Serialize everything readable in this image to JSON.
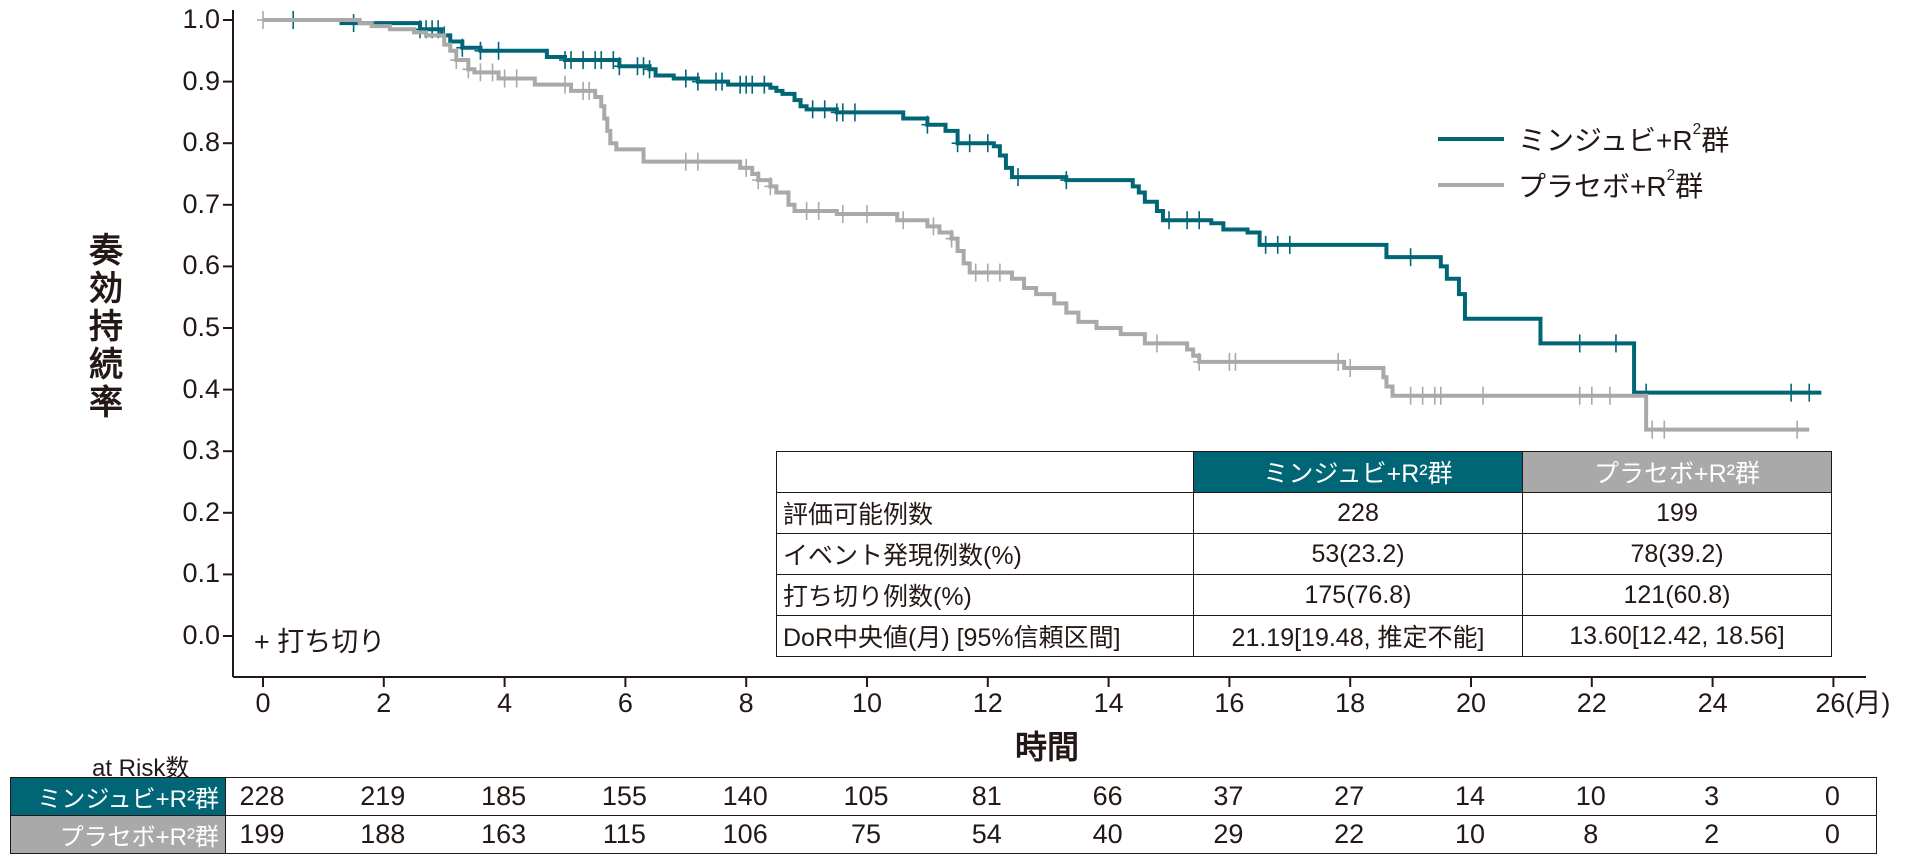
{
  "colors": {
    "minjuvi": "#006676",
    "placebo": "#a9a9a9",
    "text": "#231815"
  },
  "legend": {
    "minjuvi": {
      "prefix": "ミンジュビ+R",
      "sup": "2",
      "suffix": "群"
    },
    "placebo": {
      "prefix": "プラセボ+R",
      "sup": "2",
      "suffix": "群"
    }
  },
  "censor_note": "+ 打ち切り",
  "summary_table": {
    "headers": [
      "",
      "ミンジュビ+R²群",
      "プラセボ+R²群"
    ],
    "rows": [
      {
        "label": "評価可能例数",
        "minjuvi": "228",
        "placebo": "199"
      },
      {
        "label": "イベント発現例数(%)",
        "minjuvi": "53(23.2)",
        "placebo": "78(39.2)"
      },
      {
        "label": "打ち切り例数(%)",
        "minjuvi": "175(76.8)",
        "placebo": "121(60.8)"
      },
      {
        "label": "DoR中央値(月) [95%信頼区間]",
        "minjuvi": "21.19[19.48, 推定不能]",
        "placebo": "13.60[12.42, 18.56]"
      }
    ]
  },
  "at_risk": {
    "title": "at Risk数",
    "times": [
      0,
      2,
      4,
      6,
      8,
      10,
      12,
      14,
      16,
      18,
      20,
      22,
      24,
      26
    ],
    "minjuvi": {
      "label": "ミンジュビ+R²群",
      "values": [
        "228",
        "219",
        "185",
        "155",
        "140",
        "105",
        "81",
        "66",
        "37",
        "27",
        "14",
        "10",
        "3",
        "0"
      ]
    },
    "placebo": {
      "label": "プラセボ+R²群",
      "values": [
        "199",
        "188",
        "163",
        "115",
        "106",
        "75",
        "54",
        "40",
        "29",
        "22",
        "10",
        "8",
        "2",
        "0"
      ]
    }
  },
  "chart_data": {
    "type": "line",
    "subtype": "kaplan-meier step",
    "title": "",
    "xlabel": "時間",
    "x_unit": "(月)",
    "ylabel": "奏効持続率",
    "xlim": [
      0,
      26
    ],
    "ylim": [
      0.0,
      1.0
    ],
    "x_ticks": [
      "0",
      "2",
      "4",
      "6",
      "8",
      "10",
      "12",
      "14",
      "16",
      "18",
      "20",
      "22",
      "24",
      "26"
    ],
    "y_ticks": [
      "0.0",
      "0.1",
      "0.2",
      "0.3",
      "0.4",
      "0.5",
      "0.6",
      "0.7",
      "0.8",
      "0.9",
      "1.0"
    ],
    "grid": false,
    "legend_position": "upper right",
    "series": [
      {
        "name": "ミンジュビ+R²群",
        "color": "#006676",
        "steps": [
          [
            0,
            1.0
          ],
          [
            1.3,
            0.995
          ],
          [
            2.6,
            0.985
          ],
          [
            2.95,
            0.975
          ],
          [
            3.1,
            0.965
          ],
          [
            3.3,
            0.955
          ],
          [
            3.6,
            0.95
          ],
          [
            4.7,
            0.94
          ],
          [
            5.0,
            0.935
          ],
          [
            5.9,
            0.925
          ],
          [
            6.4,
            0.92
          ],
          [
            6.5,
            0.91
          ],
          [
            6.8,
            0.905
          ],
          [
            7.2,
            0.9
          ],
          [
            7.7,
            0.895
          ],
          [
            8.4,
            0.89
          ],
          [
            8.5,
            0.885
          ],
          [
            8.6,
            0.88
          ],
          [
            8.8,
            0.87
          ],
          [
            8.9,
            0.86
          ],
          [
            9.0,
            0.855
          ],
          [
            9.5,
            0.85
          ],
          [
            10.6,
            0.84
          ],
          [
            11.0,
            0.83
          ],
          [
            11.3,
            0.82
          ],
          [
            11.5,
            0.8
          ],
          [
            12.1,
            0.795
          ],
          [
            12.2,
            0.78
          ],
          [
            12.3,
            0.76
          ],
          [
            12.4,
            0.745
          ],
          [
            13.3,
            0.74
          ],
          [
            14.4,
            0.73
          ],
          [
            14.5,
            0.72
          ],
          [
            14.6,
            0.705
          ],
          [
            14.8,
            0.69
          ],
          [
            14.9,
            0.675
          ],
          [
            15.7,
            0.67
          ],
          [
            15.9,
            0.66
          ],
          [
            16.3,
            0.655
          ],
          [
            16.5,
            0.635
          ],
          [
            18.6,
            0.615
          ],
          [
            19.5,
            0.6
          ],
          [
            19.6,
            0.58
          ],
          [
            19.8,
            0.555
          ],
          [
            19.9,
            0.515
          ],
          [
            21.15,
            0.475
          ],
          [
            22.7,
            0.395
          ],
          [
            25.8,
            0.395
          ]
        ],
        "censor_times": [
          0.5,
          1.5,
          2.6,
          2.7,
          2.8,
          2.9,
          3.0,
          3.3,
          3.6,
          3.9,
          5.0,
          5.1,
          5.3,
          5.5,
          5.6,
          5.8,
          5.9,
          6.2,
          6.3,
          6.4,
          7.0,
          7.2,
          7.5,
          7.6,
          7.9,
          8.0,
          8.1,
          8.3,
          9.1,
          9.3,
          9.5,
          9.6,
          9.8,
          11.0,
          11.5,
          11.7,
          12.0,
          12.5,
          13.3,
          15.0,
          15.3,
          15.5,
          16.6,
          16.8,
          17.0,
          19.0,
          21.8,
          22.4,
          22.9,
          25.3,
          25.6
        ]
      },
      {
        "name": "プラセボ+R²群",
        "color": "#a9a9a9",
        "steps": [
          [
            0,
            1.0
          ],
          [
            1.6,
            0.995
          ],
          [
            1.8,
            0.99
          ],
          [
            2.1,
            0.985
          ],
          [
            2.5,
            0.98
          ],
          [
            2.7,
            0.975
          ],
          [
            3.0,
            0.96
          ],
          [
            3.1,
            0.95
          ],
          [
            3.2,
            0.935
          ],
          [
            3.4,
            0.92
          ],
          [
            3.5,
            0.915
          ],
          [
            3.9,
            0.905
          ],
          [
            4.5,
            0.895
          ],
          [
            5.1,
            0.885
          ],
          [
            5.5,
            0.875
          ],
          [
            5.6,
            0.86
          ],
          [
            5.65,
            0.84
          ],
          [
            5.7,
            0.82
          ],
          [
            5.75,
            0.8
          ],
          [
            5.85,
            0.79
          ],
          [
            6.3,
            0.77
          ],
          [
            7.8,
            0.77
          ],
          [
            7.9,
            0.76
          ],
          [
            8.1,
            0.75
          ],
          [
            8.2,
            0.74
          ],
          [
            8.4,
            0.73
          ],
          [
            8.5,
            0.72
          ],
          [
            8.7,
            0.7
          ],
          [
            8.8,
            0.69
          ],
          [
            9.5,
            0.685
          ],
          [
            10.5,
            0.675
          ],
          [
            11.0,
            0.665
          ],
          [
            11.2,
            0.655
          ],
          [
            11.4,
            0.645
          ],
          [
            11.5,
            0.625
          ],
          [
            11.6,
            0.605
          ],
          [
            11.7,
            0.59
          ],
          [
            12.4,
            0.58
          ],
          [
            12.6,
            0.565
          ],
          [
            12.8,
            0.555
          ],
          [
            13.1,
            0.54
          ],
          [
            13.3,
            0.525
          ],
          [
            13.5,
            0.51
          ],
          [
            13.8,
            0.5
          ],
          [
            14.2,
            0.49
          ],
          [
            14.6,
            0.475
          ],
          [
            15.3,
            0.465
          ],
          [
            15.4,
            0.455
          ],
          [
            15.5,
            0.445
          ],
          [
            17.9,
            0.435
          ],
          [
            18.55,
            0.42
          ],
          [
            18.6,
            0.405
          ],
          [
            18.7,
            0.39
          ],
          [
            22.9,
            0.335
          ],
          [
            25.6,
            0.335
          ]
        ],
        "censor_times": [
          0.0,
          3.2,
          3.4,
          3.6,
          3.8,
          4.0,
          4.2,
          5.0,
          5.3,
          5.4,
          7.0,
          7.2,
          8.0,
          8.2,
          8.4,
          9.0,
          9.2,
          9.6,
          10.0,
          10.6,
          11.1,
          11.4,
          11.8,
          12.0,
          12.2,
          14.8,
          15.5,
          16.0,
          16.1,
          17.8,
          18.0,
          19.0,
          19.2,
          19.4,
          19.5,
          20.2,
          21.8,
          22.0,
          22.3,
          23.0,
          23.2,
          25.4
        ]
      }
    ]
  }
}
